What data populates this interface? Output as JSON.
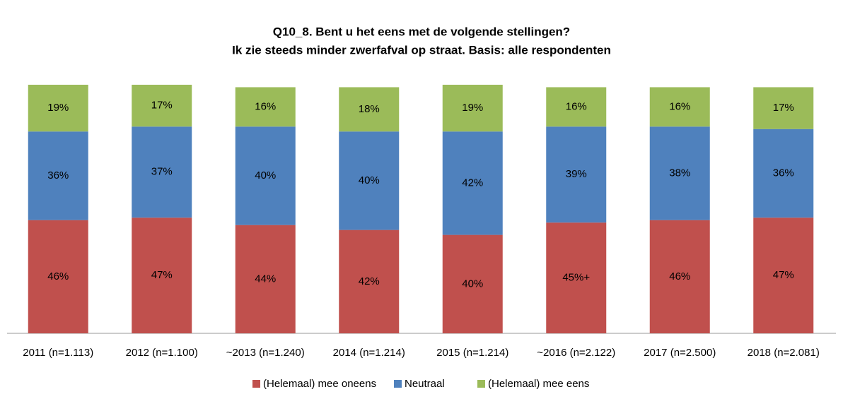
{
  "chart_data": {
    "type": "stacked_bar",
    "title": "Q10_8. Bent u het eens met de volgende stellingen?",
    "subtitle": "Ik zie steeds minder zwerfafval op straat. Basis: alle respondenten",
    "categories": [
      "2011 (n=1.113)",
      "2012 (n=1.100)",
      "~2013 (n=1.240)",
      "2014 (n=1.214)",
      "2015 (n=1.214)",
      "~2016 (n=2.122)",
      "2017 (n=2.500)",
      "2018 (n=2.081)"
    ],
    "series": [
      {
        "name": "(Helemaal) mee oneens",
        "color": "#c0504d",
        "values": [
          46,
          47,
          44,
          42,
          40,
          45,
          46,
          47
        ],
        "value_labels": [
          "46%",
          "47%",
          "44%",
          "42%",
          "40%",
          "45%+",
          "46%",
          "47%"
        ]
      },
      {
        "name": "Neutraal",
        "color": "#4f81bd",
        "values": [
          36,
          37,
          40,
          40,
          42,
          39,
          38,
          36
        ],
        "value_labels": [
          "36%",
          "37%",
          "40%",
          "40%",
          "42%",
          "39%",
          "38%",
          "36%"
        ]
      },
      {
        "name": "(Helemaal) mee eens",
        "color": "#9bbb59",
        "values": [
          19,
          17,
          16,
          18,
          19,
          16,
          16,
          17
        ],
        "value_labels": [
          "19%",
          "17%",
          "16%",
          "18%",
          "19%",
          "16%",
          "16%",
          "17%"
        ]
      }
    ],
    "ylim": [
      0,
      101
    ]
  }
}
